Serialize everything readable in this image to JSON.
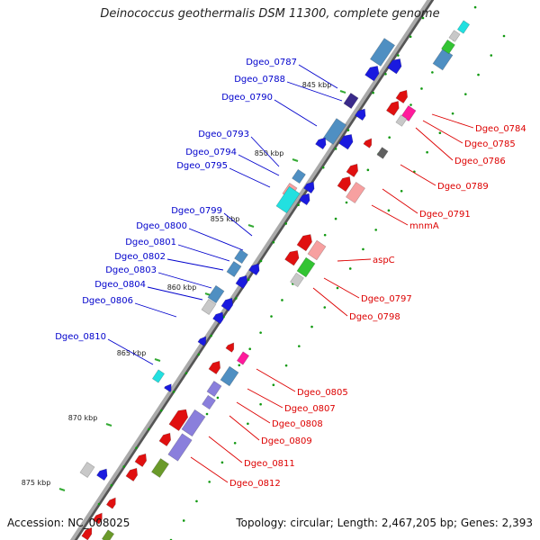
{
  "title": "Deinococcus geothermalis DSM 11300, complete genome",
  "accession": "Accession: NC_008025",
  "topology": "Topology: circular; Length: 2,467,205 bp; Genes: 2,393",
  "colors": {
    "label_blue": "#0000cc",
    "label_red": "#dd0000",
    "backbone": "#888888",
    "tick": "#33aa33",
    "ruler_dot": "#119911"
  },
  "ticks": [
    "845 kbp",
    "850 kbp",
    "855 kbp",
    "860 kbp",
    "865 kbp",
    "870 kbp",
    "875 kbp"
  ],
  "labels_left": [
    "Dgeo_0787",
    "Dgeo_0788",
    "Dgeo_0790",
    "Dgeo_0793",
    "Dgeo_0794",
    "Dgeo_0795",
    "Dgeo_0799",
    "Dgeo_0800",
    "Dgeo_0801",
    "Dgeo_0802",
    "Dgeo_0803",
    "Dgeo_0804",
    "Dgeo_0806",
    "Dgeo_0810"
  ],
  "labels_right": [
    "Dgeo_0784",
    "Dgeo_0785",
    "Dgeo_0786",
    "Dgeo_0789",
    "Dgeo_0791",
    "mnmA",
    "aspC",
    "Dgeo_0797",
    "Dgeo_0798",
    "Dgeo_0805",
    "Dgeo_0807",
    "Dgeo_0808",
    "Dgeo_0809",
    "Dgeo_0811",
    "Dgeo_0812"
  ]
}
